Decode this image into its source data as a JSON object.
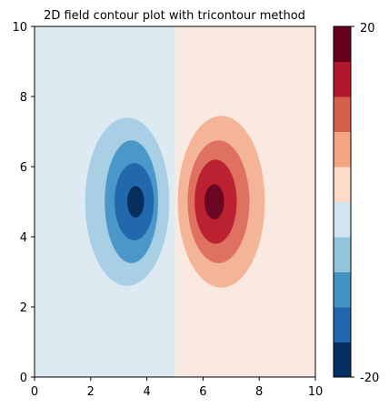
{
  "chart_data": {
    "type": "contour",
    "title": "2D field contour plot with tricontour method",
    "xlabel": "",
    "ylabel": "",
    "xlim": [
      0,
      10
    ],
    "ylim": [
      0,
      10
    ],
    "x_ticks": [
      "0",
      "2",
      "4",
      "6",
      "8",
      "10"
    ],
    "y_ticks": [
      "0",
      "2",
      "4",
      "6",
      "8",
      "10"
    ],
    "colorbar": {
      "min_label": "-20",
      "max_label": "20",
      "range": [
        -20,
        20
      ],
      "level_colors": [
        "#053061",
        "#2166ac",
        "#4393c3",
        "#92c5de",
        "#d1e5f0",
        "#fddbc7",
        "#f4a582",
        "#d6604d",
        "#b2182b",
        "#67001f"
      ]
    },
    "background_colors": {
      "left": "#deeaf2",
      "right": "#fae9e1"
    },
    "field": {
      "description_levels": [
        {
          "level": 1,
          "left_color": "#a9cfe5",
          "right_color": "#f4b498"
        },
        {
          "level": 2,
          "left_color": "#4b97ca",
          "right_color": "#de7160"
        },
        {
          "level": 3,
          "left_color": "#2268ad",
          "right_color": "#bb2131"
        },
        {
          "level": 4,
          "left_color": "#062f5e",
          "right_color": "#6b0723"
        }
      ],
      "left_peak": {
        "x": 3.6,
        "y": 5.0,
        "value": -20
      },
      "right_peak": {
        "x": 6.45,
        "y": 5.0,
        "value": 20
      },
      "contours": [
        {
          "side": "left",
          "cx": 3.3,
          "cy": 5.0,
          "rx": 1.5,
          "ry": 2.4,
          "level": 1
        },
        {
          "side": "left",
          "cx": 3.45,
          "cy": 5.0,
          "rx": 0.95,
          "ry": 1.75,
          "level": 2
        },
        {
          "side": "left",
          "cx": 3.55,
          "cy": 5.0,
          "rx": 0.7,
          "ry": 1.1,
          "level": 3
        },
        {
          "side": "left",
          "cx": 3.6,
          "cy": 5.0,
          "rx": 0.3,
          "ry": 0.45,
          "level": 4
        },
        {
          "side": "right",
          "cx": 6.65,
          "cy": 5.0,
          "rx": 1.55,
          "ry": 2.45,
          "level": 1
        },
        {
          "side": "right",
          "cx": 6.55,
          "cy": 5.0,
          "rx": 1.1,
          "ry": 1.75,
          "level": 2
        },
        {
          "side": "right",
          "cx": 6.45,
          "cy": 5.0,
          "rx": 0.75,
          "ry": 1.2,
          "level": 3
        },
        {
          "side": "right",
          "cx": 6.4,
          "cy": 5.0,
          "rx": 0.35,
          "ry": 0.5,
          "level": 4
        }
      ]
    }
  }
}
